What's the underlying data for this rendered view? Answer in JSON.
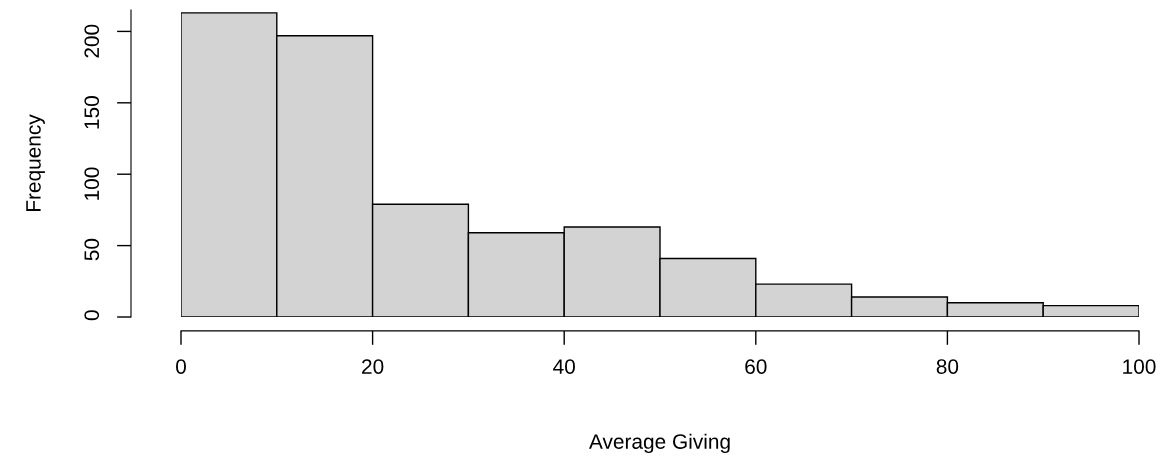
{
  "chart_data": {
    "type": "histogram",
    "xlabel": "Average Giving",
    "ylabel": "Frequency",
    "bins": [
      0,
      10,
      20,
      30,
      40,
      50,
      60,
      70,
      80,
      90,
      100
    ],
    "values": [
      213,
      197,
      79,
      59,
      63,
      41,
      23,
      14,
      10,
      8
    ],
    "color": "#d3d3d3",
    "xlim": [
      0,
      100
    ],
    "xticks": [
      0,
      20,
      40,
      60,
      80,
      100
    ],
    "ylim": [
      0,
      215
    ],
    "yticks": [
      0,
      50,
      100,
      150,
      200
    ],
    "grid": false,
    "legend": false
  }
}
